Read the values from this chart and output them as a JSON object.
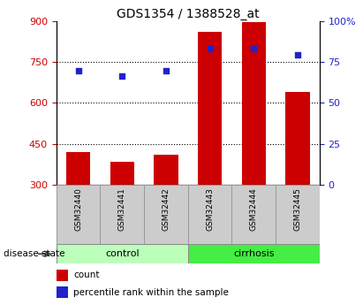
{
  "title": "GDS1354 / 1388528_at",
  "categories": [
    "GSM32440",
    "GSM32441",
    "GSM32442",
    "GSM32443",
    "GSM32444",
    "GSM32445"
  ],
  "bar_values": [
    420,
    385,
    410,
    860,
    897,
    640
  ],
  "bar_bottom": 300,
  "dot_values_left": [
    720,
    700,
    720,
    800,
    800,
    778
  ],
  "bar_color": "#cc0000",
  "dot_color": "#2222cc",
  "left_ylim": [
    300,
    900
  ],
  "left_yticks": [
    300,
    450,
    600,
    750,
    900
  ],
  "right_ylim": [
    0,
    100
  ],
  "right_yticks": [
    0,
    25,
    50,
    75,
    100
  ],
  "right_yticklabels": [
    "0",
    "25",
    "50",
    "75",
    "100%"
  ],
  "left_label_color": "#cc0000",
  "right_label_color": "#2222cc",
  "group_labels": [
    "control",
    "cirrhosis"
  ],
  "ctrl_color": "#bbffbb",
  "cirr_color": "#44ee44",
  "disease_state_label": "disease state",
  "legend_items": [
    "count",
    "percentile rank within the sample"
  ],
  "xlabel_bg_color": "#cccccc"
}
